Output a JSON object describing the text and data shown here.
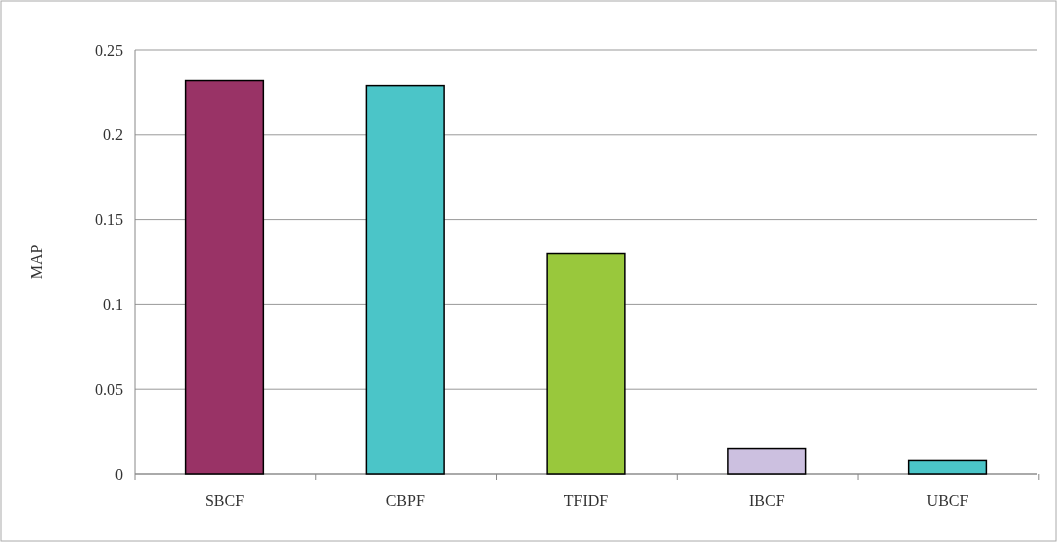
{
  "chart_data": {
    "type": "bar",
    "ylabel": "MAP",
    "categories": [
      "SBCF",
      "CBPF",
      "TFIDF",
      "IBCF",
      "UBCF"
    ],
    "values": [
      0.232,
      0.229,
      0.13,
      0.015,
      0.008
    ],
    "colors": [
      "#993366",
      "#4bc5c8",
      "#99c83c",
      "#ccc0e0",
      "#4bc5c8"
    ],
    "ylim": [
      0,
      0.25
    ],
    "yticks": [
      0,
      0.05,
      0.1,
      0.15,
      0.2,
      0.25
    ],
    "grid": "y"
  }
}
